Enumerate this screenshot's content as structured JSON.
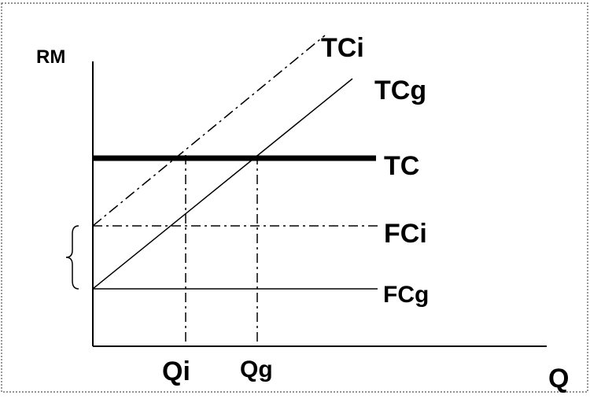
{
  "labels": {
    "y_axis": "RM",
    "x_axis": "Q",
    "tci": "TCi",
    "tcg": "TCg",
    "tc": "TC",
    "fci": "FCi",
    "fcg": "FCg",
    "qi": "Qi",
    "qg": "Qg"
  },
  "colors": {
    "line": "#000000",
    "background": "#ffffff",
    "frame": "#555555"
  }
}
